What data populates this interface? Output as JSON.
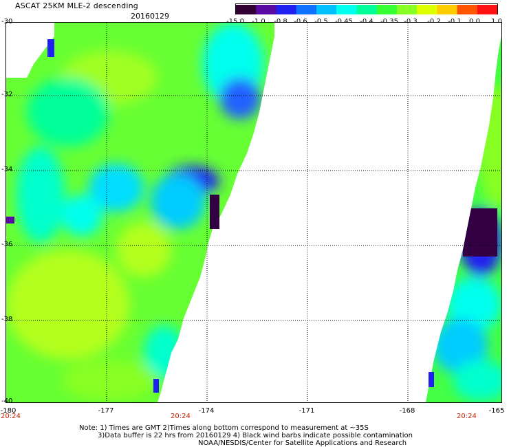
{
  "header": {
    "title": "ASCAT 25KM MLE-2 descending",
    "date": "20160129"
  },
  "colorbar": {
    "labels": [
      "-15.0",
      "-1.0",
      "-0.8",
      "-0.6",
      "-0.5",
      "-0.45",
      "-0.4",
      "-0.35",
      "-0.3",
      "-0.2",
      "-0.1",
      "0.0",
      "1.0"
    ],
    "colors": [
      "#330033",
      "#5a0aa0",
      "#2020f0",
      "#1070ff",
      "#00c0ff",
      "#00ffee",
      "#00ff99",
      "#33ff33",
      "#88ff22",
      "#ddff00",
      "#ffcc00",
      "#ff5500",
      "#ff1111"
    ]
  },
  "map": {
    "lat_labels": [
      "-30",
      "-32",
      "-34",
      "-36",
      "-38",
      "-40"
    ],
    "lon_labels": [
      "-180",
      "-177",
      "-174",
      "-171",
      "-168",
      "-165"
    ],
    "time_labels": [
      "20:24",
      "20:24",
      "20:24"
    ]
  },
  "notes": {
    "line1": "Note: 1) Times are GMT 2)Times along bottom correspond to measurement at ~35S",
    "line2": "3)Data buffer is 22 hrs from 20160129 4) Black wind barbs indicate possible contamination",
    "line3": "NOAA/NESDIS/Center for Satellite Applications and Research"
  }
}
